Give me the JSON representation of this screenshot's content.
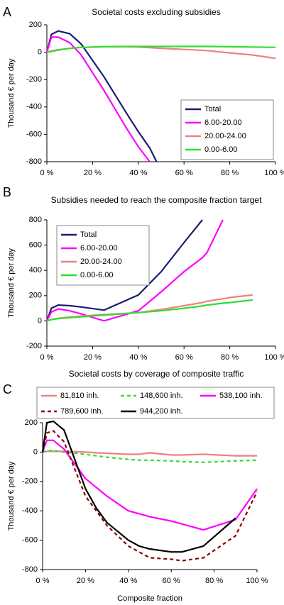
{
  "chart_data": [
    {
      "type": "line",
      "panel_label": "A",
      "title": "Societal costs excluding subsidies",
      "y_label": "Thousand € per day",
      "x": [
        0,
        2,
        5,
        10,
        15,
        25,
        35,
        40,
        45,
        48,
        60,
        70,
        80,
        90,
        100
      ],
      "series": [
        {
          "name": "Total",
          "color": "#1a1f6e",
          "values": [
            0,
            130,
            155,
            135,
            60,
            -180,
            -450,
            -580,
            -700,
            -800,
            null,
            null,
            null,
            null,
            null
          ]
        },
        {
          "name": "6.00-20.00",
          "color": "#ff00ff",
          "values": [
            0,
            110,
            110,
            70,
            -20,
            -280,
            -560,
            -690,
            -800,
            null,
            null,
            null,
            null,
            null,
            null
          ]
        },
        {
          "name": "20.00-24.00",
          "color": "#f08080",
          "values": [
            0,
            10,
            18,
            28,
            35,
            40,
            40,
            38,
            33,
            30,
            20,
            12,
            -5,
            -20,
            -45
          ]
        },
        {
          "name": "0.00-6.00",
          "color": "#33dd33",
          "values": [
            0,
            5,
            15,
            28,
            35,
            40,
            42,
            42,
            42,
            42,
            42,
            42,
            40,
            38,
            35
          ]
        }
      ],
      "xlim": [
        0,
        100
      ],
      "ylim": [
        -800,
        200
      ],
      "xticks": [
        {
          "value": 0,
          "label": "0 %"
        },
        {
          "value": 20,
          "label": "20 %"
        },
        {
          "value": 40,
          "label": "40 %"
        },
        {
          "value": 60,
          "label": "60 %"
        },
        {
          "value": 80,
          "label": "80 %"
        },
        {
          "value": 100,
          "label": "100 %"
        }
      ],
      "yticks": [
        -800,
        -600,
        -400,
        -200,
        0,
        200
      ],
      "legend": "lower right"
    },
    {
      "type": "line",
      "panel_label": "B",
      "title": "Subsidies needed to reach the composite fraction target",
      "y_label": "Thousand € per day",
      "x": [
        0,
        2,
        5,
        10,
        15,
        25,
        40,
        50,
        60,
        68,
        70,
        77,
        80,
        90
      ],
      "series": [
        {
          "name": "Total",
          "color": "#1a1f6e",
          "values": [
            0,
            100,
            125,
            120,
            110,
            85,
            205,
            390,
            620,
            800,
            null,
            null,
            null,
            null
          ]
        },
        {
          "name": "6.00-20.00",
          "color": "#ff00ff",
          "values": [
            0,
            70,
            95,
            80,
            55,
            0,
            80,
            230,
            390,
            500,
            540,
            800,
            null,
            null
          ]
        },
        {
          "name": "20.00-24.00",
          "color": "#f08080",
          "values": [
            0,
            10,
            20,
            30,
            38,
            50,
            65,
            90,
            120,
            145,
            155,
            175,
            185,
            205
          ]
        },
        {
          "name": "0.00-6.00",
          "color": "#33dd33",
          "values": [
            0,
            10,
            18,
            25,
            32,
            45,
            65,
            80,
            100,
            118,
            125,
            140,
            145,
            165
          ]
        }
      ],
      "xlim": [
        0,
        100
      ],
      "ylim": [
        -200,
        800
      ],
      "xticks": [
        {
          "value": 0,
          "label": "0 %"
        },
        {
          "value": 20,
          "label": "20 %"
        },
        {
          "value": 40,
          "label": "40 %"
        },
        {
          "value": 60,
          "label": "60 %"
        },
        {
          "value": 80,
          "label": "80 %"
        },
        {
          "value": 100,
          "label": "100 %"
        }
      ],
      "yticks": [
        -200,
        0,
        200,
        400,
        600,
        800
      ],
      "legend": "upper left"
    },
    {
      "type": "line",
      "panel_label": "C",
      "title": "Societal costs by coverage of composite traffic",
      "y_label": "Thousand € per day",
      "x_label": "Composite fraction",
      "x": [
        0,
        2,
        5,
        10,
        20,
        25,
        30,
        40,
        45,
        50,
        60,
        65,
        75,
        90,
        100
      ],
      "series": [
        {
          "name": "81,810 inh.",
          "color": "#f08080",
          "dashed": false,
          "values": [
            0,
            5,
            5,
            5,
            0,
            -5,
            -8,
            -15,
            -15,
            -5,
            -20,
            -20,
            -15,
            -25,
            -25
          ]
        },
        {
          "name": "148,600 inh.",
          "color": "#33dd33",
          "dashed": true,
          "values": [
            0,
            10,
            10,
            0,
            -15,
            -25,
            -35,
            -50,
            -55,
            -55,
            -60,
            -65,
            -70,
            -60,
            -55
          ]
        },
        {
          "name": "538,100 inh.",
          "color": "#ff00ff",
          "dashed": false,
          "values": [
            0,
            80,
            80,
            20,
            -180,
            -240,
            -300,
            -400,
            -420,
            -440,
            -470,
            -490,
            -530,
            -460,
            -250
          ]
        },
        {
          "name": "789,600 inh.",
          "color": "#8b0000",
          "dashed": true,
          "values": [
            0,
            130,
            145,
            70,
            -300,
            -400,
            -500,
            -640,
            -680,
            -720,
            -730,
            -740,
            -720,
            -570,
            -270
          ]
        },
        {
          "name": "944,200 inh.",
          "color": "#000000",
          "dashed": false,
          "values": [
            0,
            200,
            210,
            150,
            -250,
            -380,
            -480,
            -600,
            -640,
            -660,
            -680,
            -680,
            -640,
            -450,
            null
          ]
        }
      ],
      "xlim": [
        0,
        100
      ],
      "ylim": [
        -800,
        200
      ],
      "xticks": [
        {
          "value": 0,
          "label": "0 %"
        },
        {
          "value": 20,
          "label": "20 %"
        },
        {
          "value": 40,
          "label": "40 %"
        },
        {
          "value": 60,
          "label": "60 %"
        },
        {
          "value": 80,
          "label": "80 %"
        },
        {
          "value": 100,
          "label": "100 %"
        }
      ],
      "yticks": [
        -800,
        -600,
        -400,
        -200,
        0,
        200
      ],
      "legend": "top"
    }
  ]
}
